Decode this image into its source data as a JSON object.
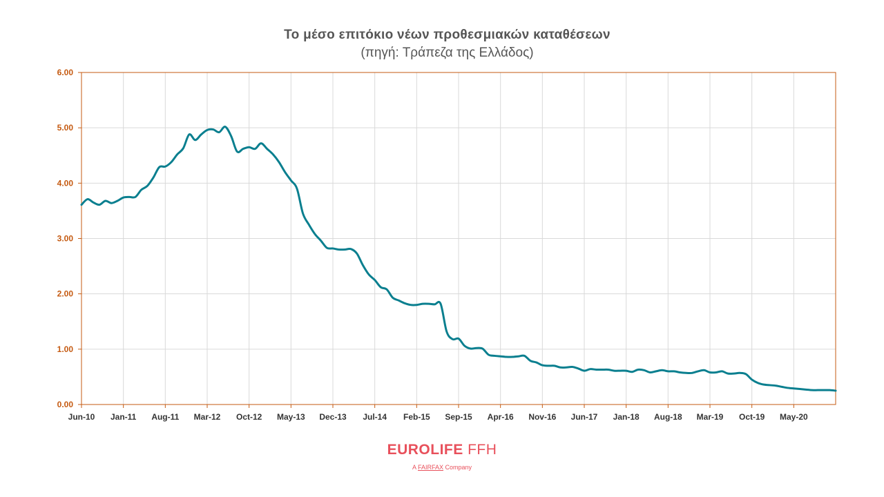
{
  "header": {
    "title": "Το μέσο επιτόκιο νέων προθεσμιακών καταθέσεων",
    "subtitle": "(πηγή: Τράπεζα της Ελλάδος)"
  },
  "logo": {
    "brand": "EUROLIFE",
    "brand_suffix": "FFH",
    "tagline_prefix": "A",
    "tagline_company": "FAIRFAX",
    "tagline_suffix": "Company"
  },
  "colors": {
    "line": "#0a7f8f",
    "axis": "#c55a11",
    "tick_label": "#c55a11",
    "grid": "#d9d9d9",
    "title": "#555555",
    "brand": "#e8505b"
  },
  "chart_data": {
    "type": "line",
    "title": "Το μέσο επιτόκιο νέων προθεσμιακών καταθέσεων",
    "subtitle": "(πηγή: Τράπεζα της Ελλάδος)",
    "xlabel": "",
    "ylabel": "",
    "ylim": [
      0,
      6
    ],
    "yticks": [
      "0.00",
      "1.00",
      "2.00",
      "3.00",
      "4.00",
      "5.00",
      "6.00"
    ],
    "xlim": [
      "2010-06",
      "2020-12"
    ],
    "xticks": [
      "Jun-10",
      "Jan-11",
      "Aug-11",
      "Mar-12",
      "Oct-12",
      "May-13",
      "Dec-13",
      "Jul-14",
      "Feb-15",
      "Sep-15",
      "Apr-16",
      "Nov-16",
      "Jun-17",
      "Jan-18",
      "Aug-18",
      "Mar-19",
      "Oct-19",
      "May-20"
    ],
    "grid": true,
    "legend": "none",
    "series": [
      {
        "x": [
          "2010-06",
          "2010-07",
          "2010-08",
          "2010-09",
          "2010-10",
          "2010-11",
          "2010-12",
          "2011-01",
          "2011-02",
          "2011-03",
          "2011-04",
          "2011-05",
          "2011-06",
          "2011-07",
          "2011-08",
          "2011-09",
          "2011-10",
          "2011-11",
          "2011-12",
          "2012-01",
          "2012-02",
          "2012-03",
          "2012-04",
          "2012-05",
          "2012-06",
          "2012-07",
          "2012-08",
          "2012-09",
          "2012-10",
          "2012-11",
          "2012-12",
          "2013-01",
          "2013-02",
          "2013-03",
          "2013-04",
          "2013-05",
          "2013-06",
          "2013-07",
          "2013-08",
          "2013-09",
          "2013-10",
          "2013-11",
          "2013-12",
          "2014-01",
          "2014-02",
          "2014-03",
          "2014-04",
          "2014-05",
          "2014-06",
          "2014-07",
          "2014-08",
          "2014-09",
          "2014-10",
          "2014-11",
          "2014-12",
          "2015-01",
          "2015-02",
          "2015-03",
          "2015-04",
          "2015-05",
          "2015-06",
          "2015-07",
          "2015-08",
          "2015-09",
          "2015-10",
          "2015-11",
          "2015-12",
          "2016-01",
          "2016-02",
          "2016-03",
          "2016-04",
          "2016-05",
          "2016-06",
          "2016-07",
          "2016-08",
          "2016-09",
          "2016-10",
          "2016-11",
          "2016-12",
          "2017-01",
          "2017-02",
          "2017-03",
          "2017-04",
          "2017-05",
          "2017-06",
          "2017-07",
          "2017-08",
          "2017-09",
          "2017-10",
          "2017-11",
          "2017-12",
          "2018-01",
          "2018-02",
          "2018-03",
          "2018-04",
          "2018-05",
          "2018-06",
          "2018-07",
          "2018-08",
          "2018-09",
          "2018-10",
          "2018-11",
          "2018-12",
          "2019-01",
          "2019-02",
          "2019-03",
          "2019-04",
          "2019-05",
          "2019-06",
          "2019-07",
          "2019-08",
          "2019-09",
          "2019-10",
          "2019-11",
          "2019-12",
          "2020-01",
          "2020-02",
          "2020-03",
          "2020-04",
          "2020-05",
          "2020-06",
          "2020-07",
          "2020-08",
          "2020-09",
          "2020-10",
          "2020-11",
          "2020-12"
        ],
        "y": [
          3.61,
          3.71,
          3.65,
          3.61,
          3.68,
          3.64,
          3.68,
          3.74,
          3.75,
          3.75,
          3.88,
          3.95,
          4.1,
          4.29,
          4.3,
          4.38,
          4.52,
          4.63,
          4.88,
          4.78,
          4.88,
          4.96,
          4.97,
          4.92,
          5.02,
          4.85,
          4.57,
          4.62,
          4.65,
          4.62,
          4.72,
          4.62,
          4.52,
          4.38,
          4.2,
          4.05,
          3.9,
          3.45,
          3.25,
          3.08,
          2.96,
          2.83,
          2.82,
          2.8,
          2.8,
          2.81,
          2.73,
          2.52,
          2.35,
          2.25,
          2.12,
          2.08,
          1.93,
          1.88,
          1.83,
          1.8,
          1.8,
          1.82,
          1.82,
          1.81,
          1.82,
          1.32,
          1.18,
          1.19,
          1.06,
          1.01,
          1.02,
          1.01,
          0.9,
          0.88,
          0.87,
          0.86,
          0.86,
          0.87,
          0.88,
          0.79,
          0.76,
          0.71,
          0.7,
          0.7,
          0.67,
          0.67,
          0.68,
          0.65,
          0.61,
          0.64,
          0.63,
          0.63,
          0.63,
          0.61,
          0.61,
          0.61,
          0.59,
          0.63,
          0.62,
          0.58,
          0.6,
          0.62,
          0.6,
          0.6,
          0.58,
          0.57,
          0.57,
          0.6,
          0.62,
          0.58,
          0.58,
          0.6,
          0.56,
          0.56,
          0.57,
          0.55,
          0.45,
          0.39,
          0.36,
          0.35,
          0.34,
          0.32,
          0.3,
          0.29,
          0.28,
          0.27,
          0.26,
          0.26,
          0.26,
          0.26,
          0.25
        ]
      }
    ]
  }
}
